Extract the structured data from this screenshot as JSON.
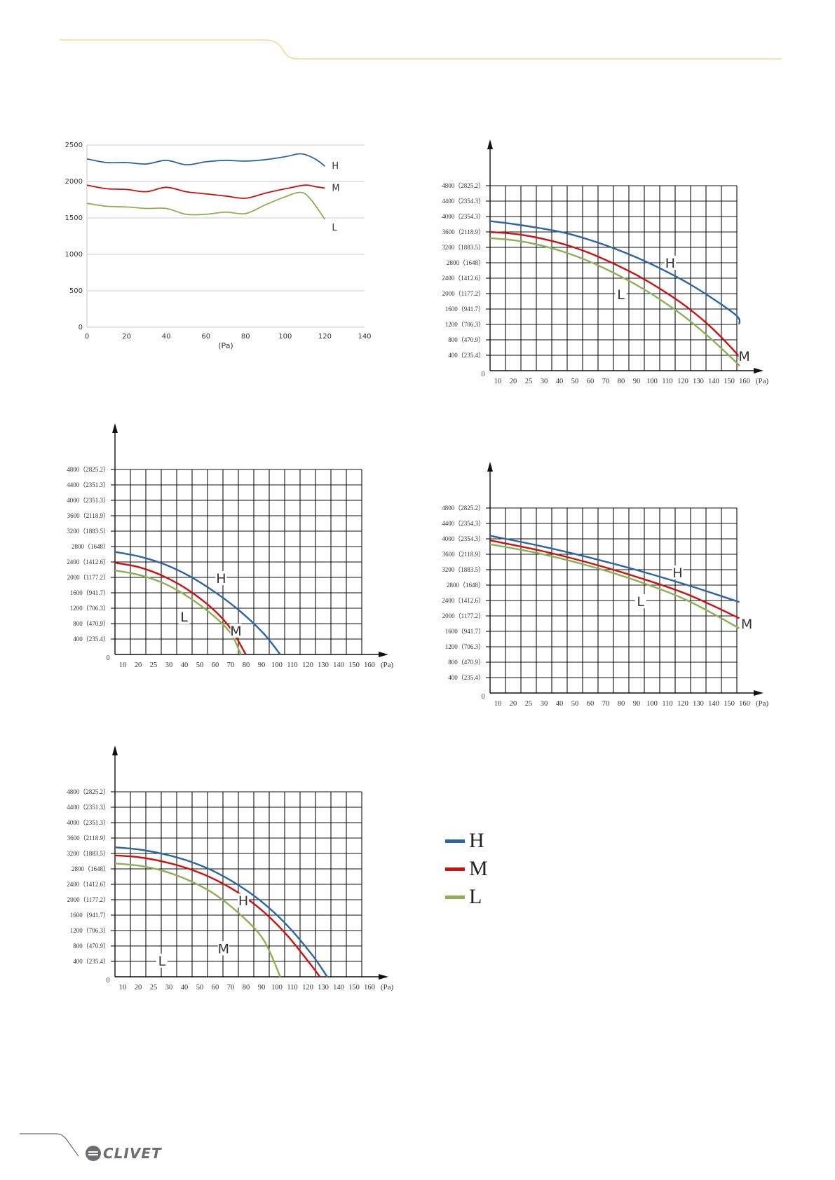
{
  "brand": {
    "logo_text": "CLIVET"
  },
  "colors": {
    "H": "#2c64a8",
    "M": "#cc1111",
    "L": "#8db055",
    "accent": "#f2d27a",
    "grid": "#111111"
  },
  "legend": [
    {
      "key": "H",
      "label": "H",
      "color": "#2c64a8"
    },
    {
      "key": "M",
      "label": "M",
      "color": "#cc1111"
    },
    {
      "key": "L",
      "label": "L",
      "color": "#8db055"
    }
  ],
  "chart_data": [
    {
      "id": "chart-1",
      "type": "line",
      "title": "",
      "xlabel": "(Pa)",
      "ylabel": "",
      "xlim": [
        0,
        140
      ],
      "ylim": [
        0,
        2500
      ],
      "x_ticks": [
        0,
        20,
        40,
        60,
        80,
        100,
        120,
        140
      ],
      "y_ticks": [
        0,
        500,
        1000,
        1500,
        2000,
        2500
      ],
      "grid": "horizontal",
      "series": [
        {
          "name": "H",
          "points": [
            [
              0,
              2310
            ],
            [
              10,
              2260
            ],
            [
              20,
              2260
            ],
            [
              30,
              2240
            ],
            [
              40,
              2290
            ],
            [
              50,
              2230
            ],
            [
              60,
              2270
            ],
            [
              70,
              2290
            ],
            [
              80,
              2280
            ],
            [
              90,
              2300
            ],
            [
              100,
              2340
            ],
            [
              108,
              2380
            ],
            [
              115,
              2310
            ],
            [
              120,
              2210
            ]
          ]
        },
        {
          "name": "M",
          "points": [
            [
              0,
              1950
            ],
            [
              10,
              1900
            ],
            [
              20,
              1890
            ],
            [
              30,
              1860
            ],
            [
              40,
              1920
            ],
            [
              50,
              1860
            ],
            [
              60,
              1830
            ],
            [
              70,
              1800
            ],
            [
              80,
              1770
            ],
            [
              90,
              1840
            ],
            [
              100,
              1900
            ],
            [
              110,
              1950
            ],
            [
              115,
              1930
            ],
            [
              120,
              1910
            ]
          ]
        },
        {
          "name": "L",
          "points": [
            [
              0,
              1700
            ],
            [
              10,
              1660
            ],
            [
              20,
              1650
            ],
            [
              30,
              1630
            ],
            [
              40,
              1630
            ],
            [
              50,
              1550
            ],
            [
              60,
              1550
            ],
            [
              70,
              1580
            ],
            [
              80,
              1560
            ],
            [
              90,
              1680
            ],
            [
              100,
              1790
            ],
            [
              108,
              1850
            ],
            [
              113,
              1750
            ],
            [
              120,
              1480
            ]
          ]
        }
      ]
    },
    {
      "id": "chart-2",
      "type": "line",
      "x_tick_labels": [
        "10",
        "20",
        "25",
        "30",
        "40",
        "50",
        "60",
        "70",
        "80",
        "90",
        "100",
        "110",
        "120",
        "130",
        "140",
        "150",
        "160"
      ],
      "x_unit": "(Pa)",
      "origin_label": "0",
      "y_tick_labels": [
        "400（235.4）",
        "800（470.9）",
        "1200（706.3）",
        "1600（941.7）",
        "2000（1177.2）",
        "2400（1412.6）",
        "2800（1648）",
        "3200（1883.5）",
        "3600（2118.9）",
        "4000（2354.3）",
        "4400（2354.3）",
        "4800（2825.2）"
      ],
      "ylim": [
        0,
        4800
      ],
      "series": [
        {
          "name": "H",
          "points": [
            [
              0,
              3880
            ],
            [
              10,
              3800
            ],
            [
              20,
              3700
            ],
            [
              30,
              3580
            ],
            [
              40,
              3400
            ],
            [
              50,
              3180
            ],
            [
              60,
              2920
            ],
            [
              70,
              2620
            ],
            [
              80,
              2280
            ],
            [
              90,
              1880
            ],
            [
              100,
              1420
            ],
            [
              101,
              1200
            ]
          ]
        },
        {
          "name": "M",
          "points": [
            [
              0,
              3600
            ],
            [
              10,
              3550
            ],
            [
              20,
              3440
            ],
            [
              30,
              3280
            ],
            [
              40,
              3060
            ],
            [
              50,
              2780
            ],
            [
              60,
              2460
            ],
            [
              70,
              2080
            ],
            [
              80,
              1640
            ],
            [
              90,
              1100
            ],
            [
              100,
              440
            ],
            [
              101,
              300
            ]
          ]
        },
        {
          "name": "L",
          "points": [
            [
              0,
              3440
            ],
            [
              10,
              3380
            ],
            [
              20,
              3260
            ],
            [
              30,
              3080
            ],
            [
              40,
              2840
            ],
            [
              50,
              2540
            ],
            [
              60,
              2200
            ],
            [
              70,
              1800
            ],
            [
              80,
              1340
            ],
            [
              90,
              800
            ],
            [
              100,
              200
            ],
            [
              101,
              120
            ]
          ]
        }
      ],
      "labels": [
        {
          "text": "H",
          "x": 73,
          "y": 2800
        },
        {
          "text": "L",
          "x": 53,
          "y": 1980
        },
        {
          "text": "M",
          "x": 103,
          "y": 380
        }
      ]
    },
    {
      "id": "chart-3",
      "type": "line",
      "x_tick_labels": [
        "10",
        "20",
        "25",
        "30",
        "40",
        "50",
        "60",
        "70",
        "80",
        "90",
        "100",
        "110",
        "120",
        "130",
        "140",
        "150",
        "160"
      ],
      "x_unit": "(Pa)",
      "origin_label": "0",
      "y_tick_labels": [
        "400（235.4）",
        "800（470.9）",
        "1200（706.3）",
        "1600（941.7）",
        "2000（1177.2）",
        "2400（1412.6）",
        "2800（1648）",
        "3200（1883.5）",
        "3600（2118.9）",
        "4000（2351.3）",
        "4400（2351.3）",
        "4800（2825.2）"
      ],
      "ylim": [
        0,
        4800
      ],
      "series": [
        {
          "name": "H",
          "points": [
            [
              0,
              2660
            ],
            [
              10,
              2540
            ],
            [
              20,
              2340
            ],
            [
              30,
              2040
            ],
            [
              40,
              1640
            ],
            [
              50,
              1160
            ],
            [
              60,
              560
            ],
            [
              67,
              0
            ]
          ]
        },
        {
          "name": "M",
          "points": [
            [
              0,
              2380
            ],
            [
              10,
              2260
            ],
            [
              20,
              2020
            ],
            [
              30,
              1660
            ],
            [
              40,
              1160
            ],
            [
              47,
              660
            ],
            [
              53,
              0
            ]
          ]
        },
        {
          "name": "L",
          "points": [
            [
              0,
              2180
            ],
            [
              10,
              2060
            ],
            [
              20,
              1840
            ],
            [
              30,
              1480
            ],
            [
              40,
              1000
            ],
            [
              47,
              540
            ],
            [
              51,
              0
            ]
          ]
        }
      ],
      "labels": [
        {
          "text": "H",
          "x": 43,
          "y": 1980
        },
        {
          "text": "L",
          "x": 28,
          "y": 980
        },
        {
          "text": "M",
          "x": 49,
          "y": 620
        }
      ]
    },
    {
      "id": "chart-4",
      "type": "line",
      "x_tick_labels": [
        "10",
        "20",
        "25",
        "30",
        "40",
        "50",
        "60",
        "70",
        "80",
        "90",
        "100",
        "110",
        "120",
        "130",
        "140",
        "150",
        "160"
      ],
      "x_unit": "(Pa)",
      "origin_label": "0",
      "y_tick_labels": [
        "400（235.4）",
        "800（470.9）",
        "1200（706.3）",
        "1600（941.7）",
        "2000（1177.2）",
        "2400（1412.6）",
        "2800（1648）",
        "3200（1883.5）",
        "3600（2118.9）",
        "4000（2354.3）",
        "4400（2354.3）",
        "4800（2825.2）"
      ],
      "ylim": [
        0,
        4800
      ],
      "series": [
        {
          "name": "H",
          "points": [
            [
              0,
              4080
            ],
            [
              20,
              3820
            ],
            [
              40,
              3520
            ],
            [
              60,
              3180
            ],
            [
              80,
              2800
            ],
            [
              101,
              2360
            ]
          ]
        },
        {
          "name": "M",
          "points": [
            [
              0,
              3960
            ],
            [
              20,
              3700
            ],
            [
              40,
              3380
            ],
            [
              60,
              3000
            ],
            [
              80,
              2560
            ],
            [
              101,
              1940
            ]
          ]
        },
        {
          "name": "L",
          "points": [
            [
              0,
              3860
            ],
            [
              20,
              3620
            ],
            [
              40,
              3300
            ],
            [
              60,
              2900
            ],
            [
              80,
              2400
            ],
            [
              101,
              1680
            ]
          ]
        }
      ],
      "labels": [
        {
          "text": "H",
          "x": 76,
          "y": 3130
        },
        {
          "text": "L",
          "x": 61,
          "y": 2380
        },
        {
          "text": "M",
          "x": 104,
          "y": 1800
        }
      ]
    },
    {
      "id": "chart-5",
      "type": "line",
      "x_tick_labels": [
        "10",
        "20",
        "25",
        "30",
        "40",
        "50",
        "60",
        "70",
        "80",
        "90",
        "100",
        "110",
        "120",
        "130",
        "140",
        "150",
        "160"
      ],
      "x_unit": "(Pa)",
      "origin_label": "0",
      "y_tick_labels": [
        "400（235.4）",
        "800（470.9）",
        "1200（706.3）",
        "1600（941.7）",
        "2000（1177.2）",
        "2400（1412.6）",
        "2800（1648）",
        "3200（1883.5）",
        "3600（2118.9）",
        "4000（2351.3）",
        "4400（2351.3）",
        "4800（2825.2）"
      ],
      "ylim": [
        0,
        4800
      ],
      "series": [
        {
          "name": "H",
          "points": [
            [
              0,
              3360
            ],
            [
              10,
              3300
            ],
            [
              20,
              3180
            ],
            [
              30,
              3000
            ],
            [
              40,
              2740
            ],
            [
              50,
              2380
            ],
            [
              60,
              1920
            ],
            [
              70,
              1320
            ],
            [
              80,
              560
            ],
            [
              86,
              0
            ]
          ]
        },
        {
          "name": "M",
          "points": [
            [
              0,
              3150
            ],
            [
              10,
              3100
            ],
            [
              20,
              2980
            ],
            [
              30,
              2800
            ],
            [
              40,
              2540
            ],
            [
              50,
              2180
            ],
            [
              60,
              1700
            ],
            [
              70,
              1060
            ],
            [
              80,
              260
            ],
            [
              83,
              0
            ]
          ]
        },
        {
          "name": "L",
          "points": [
            [
              0,
              2940
            ],
            [
              10,
              2880
            ],
            [
              20,
              2740
            ],
            [
              30,
              2500
            ],
            [
              40,
              2160
            ],
            [
              50,
              1660
            ],
            [
              60,
              980
            ],
            [
              67,
              0
            ]
          ]
        }
      ],
      "labels": [
        {
          "text": "H",
          "x": 52,
          "y": 1980
        },
        {
          "text": "M",
          "x": 44,
          "y": 740
        },
        {
          "text": "L",
          "x": 19,
          "y": 420
        }
      ]
    }
  ]
}
